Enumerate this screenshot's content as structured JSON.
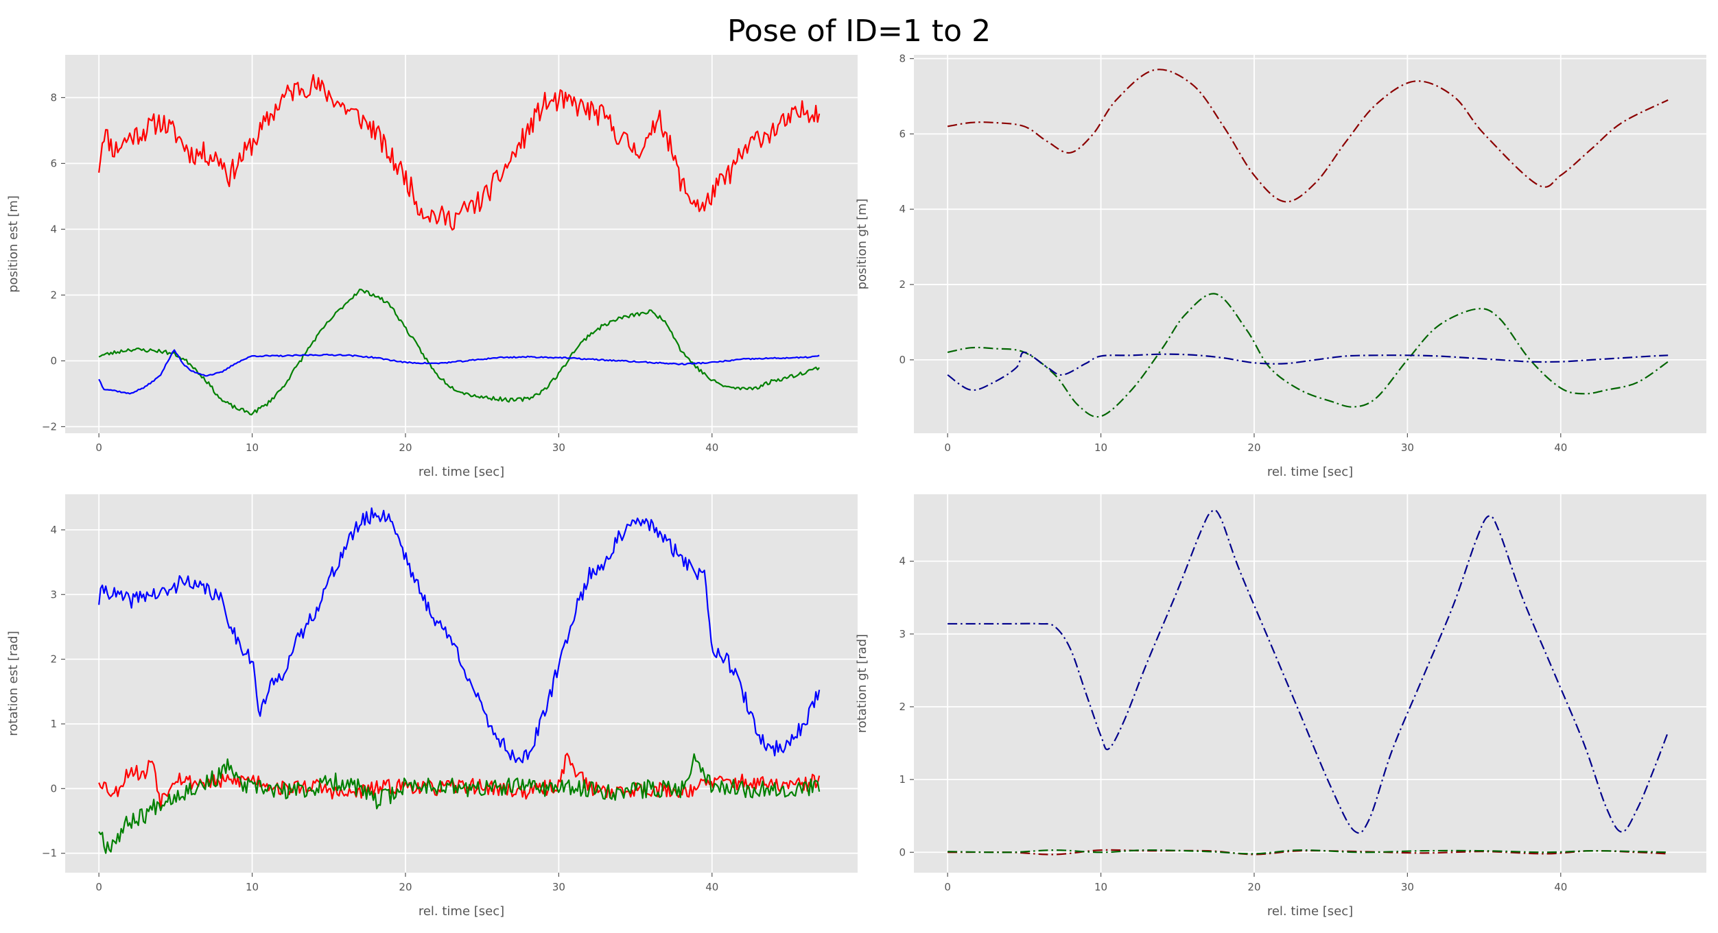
{
  "figure": {
    "title": "Pose of ID=1 to 2"
  },
  "colors": {
    "axes_bg": "#e5e5e5",
    "grid": "#ffffff",
    "est_x": "#ff0000",
    "est_y": "#008000",
    "est_z": "#0000ff",
    "gt_x": "#8b0000",
    "gt_y": "#006400",
    "gt_z": "#00008b"
  },
  "chart_data": [
    {
      "type": "line",
      "xlabel": "rel. time [sec]",
      "ylabel": "position est [m]",
      "xlim": [
        -2.2,
        49.5
      ],
      "ylim": [
        -2.2,
        9.3
      ],
      "xticks": [
        0,
        10,
        20,
        30,
        40
      ],
      "yticks": [
        -2,
        0,
        2,
        4,
        6,
        8
      ],
      "grid": true,
      "series": [
        {
          "color": "#ff0000",
          "style": "solid",
          "noise": 0.35,
          "seed": 11,
          "x": [
            0,
            0.3,
            1,
            2,
            3,
            4,
            5,
            6,
            7,
            8,
            8.5,
            9,
            10,
            11,
            12,
            13,
            14,
            15,
            16,
            17,
            18,
            19,
            20,
            21,
            22,
            23,
            24,
            25,
            26,
            27,
            28,
            29,
            30,
            31,
            32,
            33,
            34,
            35,
            36,
            36.5,
            37,
            38,
            38.5,
            39,
            39.5,
            40,
            41,
            42,
            43,
            44,
            45,
            46,
            47
          ],
          "y": [
            5.9,
            7.0,
            6.4,
            6.8,
            7.0,
            7.3,
            6.9,
            6.3,
            6.3,
            6.1,
            5.6,
            6.0,
            6.6,
            7.3,
            8.0,
            8.3,
            8.4,
            8.1,
            7.7,
            7.4,
            7.0,
            6.2,
            5.6,
            4.6,
            4.4,
            4.3,
            4.6,
            4.9,
            5.5,
            6.2,
            7.0,
            7.8,
            7.9,
            7.8,
            7.6,
            7.4,
            6.8,
            6.4,
            6.7,
            7.6,
            6.9,
            5.4,
            5.0,
            4.8,
            4.6,
            5.1,
            5.6,
            6.3,
            6.8,
            7.0,
            7.3,
            7.6,
            7.6
          ]
        },
        {
          "color": "#008000",
          "style": "solid",
          "noise": 0.06,
          "seed": 23,
          "x": [
            0,
            2,
            4,
            5,
            6,
            7,
            8,
            9,
            10,
            11,
            12,
            13,
            14,
            15,
            16,
            17,
            18,
            19,
            20,
            21,
            22,
            23,
            24,
            25,
            26,
            27,
            28,
            29,
            30,
            31,
            32,
            33,
            34,
            35,
            36,
            37,
            38,
            39,
            40,
            41,
            42,
            43,
            44,
            45,
            46,
            47
          ],
          "y": [
            0.15,
            0.35,
            0.3,
            0.2,
            -0.1,
            -0.6,
            -1.2,
            -1.45,
            -1.6,
            -1.3,
            -0.8,
            -0.1,
            0.6,
            1.2,
            1.7,
            2.15,
            2.0,
            1.7,
            1.0,
            0.3,
            -0.4,
            -0.8,
            -1.0,
            -1.1,
            -1.15,
            -1.2,
            -1.15,
            -0.9,
            -0.4,
            0.3,
            0.8,
            1.1,
            1.3,
            1.4,
            1.5,
            1.2,
            0.3,
            -0.2,
            -0.6,
            -0.8,
            -0.85,
            -0.8,
            -0.6,
            -0.5,
            -0.35,
            -0.2
          ]
        },
        {
          "color": "#0000ff",
          "style": "solid",
          "noise": 0.02,
          "seed": 37,
          "x": [
            0,
            0.3,
            1,
            2,
            3,
            4,
            4.9,
            5.5,
            6,
            7,
            8,
            9,
            10,
            12,
            14,
            16,
            18,
            20,
            22,
            24,
            26,
            28,
            30,
            32,
            34,
            36,
            38,
            40,
            42,
            44,
            46,
            47
          ],
          "y": [
            -0.55,
            -0.85,
            -0.9,
            -1.0,
            -0.8,
            -0.45,
            0.35,
            -0.1,
            -0.3,
            -0.45,
            -0.35,
            -0.05,
            0.15,
            0.15,
            0.18,
            0.18,
            0.1,
            -0.05,
            -0.08,
            0.0,
            0.1,
            0.12,
            0.1,
            0.05,
            0.0,
            -0.05,
            -0.1,
            -0.05,
            0.05,
            0.08,
            0.1,
            0.15
          ]
        }
      ]
    },
    {
      "type": "line",
      "xlabel": "rel. time [sec]",
      "ylabel": "position gt [m]",
      "xlim": [
        -2.2,
        49.5
      ],
      "ylim": [
        -1.95,
        8.1
      ],
      "xticks": [
        0,
        10,
        20,
        30,
        40
      ],
      "yticks": [
        0,
        2,
        4,
        6,
        8
      ],
      "grid": true,
      "series": [
        {
          "color": "#8b0000",
          "style": "dashdot",
          "smooth": true,
          "x": [
            0,
            1.5,
            3,
            5,
            6.5,
            8,
            9.5,
            11,
            13.5,
            16,
            18,
            20,
            22,
            24,
            26,
            28,
            30.5,
            33,
            35,
            38.5,
            40,
            42,
            44,
            47
          ],
          "y": [
            6.2,
            6.3,
            6.3,
            6.2,
            5.8,
            5.5,
            6.0,
            6.9,
            7.7,
            7.3,
            6.2,
            4.9,
            4.2,
            4.7,
            5.8,
            6.8,
            7.4,
            7.0,
            6.0,
            4.65,
            4.9,
            5.6,
            6.3,
            6.9
          ]
        },
        {
          "color": "#006400",
          "style": "dashdot",
          "smooth": true,
          "x": [
            0,
            1.5,
            3,
            5,
            7,
            8.5,
            10,
            12,
            14,
            15.5,
            17.5,
            19.5,
            21,
            23,
            25,
            26.5,
            28,
            30,
            32,
            34.5,
            36,
            38,
            40,
            41.5,
            43,
            45,
            47
          ],
          "y": [
            0.2,
            0.32,
            0.3,
            0.2,
            -0.4,
            -1.2,
            -1.5,
            -0.8,
            0.3,
            1.2,
            1.75,
            0.8,
            -0.2,
            -0.8,
            -1.1,
            -1.25,
            -1.0,
            0.0,
            0.9,
            1.35,
            1.1,
            0.0,
            -0.75,
            -0.9,
            -0.8,
            -0.6,
            -0.05
          ]
        },
        {
          "color": "#00008b",
          "style": "dashdot",
          "smooth": true,
          "x": [
            0,
            1.5,
            3,
            4.5,
            5,
            6.5,
            7.5,
            9,
            10,
            12,
            14,
            16,
            18,
            20,
            22,
            24,
            26,
            28,
            30,
            32,
            34,
            36,
            38,
            40,
            42,
            44,
            46,
            47
          ],
          "y": [
            -0.4,
            -0.8,
            -0.6,
            -0.2,
            0.2,
            -0.2,
            -0.4,
            -0.1,
            0.1,
            0.12,
            0.15,
            0.13,
            0.05,
            -0.08,
            -0.1,
            0.0,
            0.1,
            0.12,
            0.12,
            0.1,
            0.05,
            0.0,
            -0.05,
            -0.05,
            0.0,
            0.05,
            0.1,
            0.12
          ]
        }
      ]
    },
    {
      "type": "line",
      "xlabel": "rel. time [sec]",
      "ylabel": "rotation est [rad]",
      "xlim": [
        -2.2,
        49.5
      ],
      "ylim": [
        -1.3,
        4.55
      ],
      "xticks": [
        0,
        10,
        20,
        30,
        40
      ],
      "yticks": [
        -1,
        0,
        1,
        2,
        3,
        4
      ],
      "grid": true,
      "series": [
        {
          "color": "#0000ff",
          "style": "solid",
          "noise": 0.12,
          "seed": 41,
          "x": [
            0,
            0.3,
            1,
            2,
            3,
            4,
            5,
            5.5,
            6,
            7,
            8,
            8.5,
            9,
            10,
            10.5,
            11,
            12,
            13,
            14,
            15,
            16,
            17,
            18,
            19,
            19.5,
            20,
            21,
            22,
            23,
            24,
            25,
            26,
            27,
            28,
            29,
            30,
            31,
            32,
            33,
            34,
            35,
            36,
            37,
            38,
            39,
            39.5,
            40,
            41,
            42,
            43,
            44,
            45,
            46,
            47
          ],
          "y": [
            2.9,
            3.1,
            3.0,
            2.9,
            3.0,
            3.0,
            3.1,
            3.3,
            3.1,
            3.1,
            2.9,
            2.6,
            2.3,
            2.0,
            1.1,
            1.5,
            1.8,
            2.3,
            2.7,
            3.2,
            3.7,
            4.1,
            4.25,
            4.2,
            3.9,
            3.6,
            3.0,
            2.6,
            2.3,
            1.8,
            1.2,
            0.8,
            0.5,
            0.5,
            1.1,
            1.9,
            2.7,
            3.3,
            3.5,
            3.9,
            4.1,
            4.1,
            3.8,
            3.6,
            3.3,
            3.4,
            2.2,
            2.0,
            1.5,
            0.8,
            0.6,
            0.7,
            1.0,
            1.5
          ]
        },
        {
          "color": "#ff0000",
          "style": "solid",
          "noise": 0.12,
          "seed": 53,
          "x": [
            0,
            1,
            2,
            3,
            3.5,
            4,
            5,
            6,
            8,
            10,
            12,
            14,
            16,
            18,
            20,
            22,
            24,
            26,
            28,
            30,
            30.5,
            32,
            34,
            36,
            38,
            40,
            42,
            44,
            46,
            47
          ],
          "y": [
            0.15,
            -0.1,
            0.3,
            0.2,
            0.5,
            -0.2,
            0.2,
            0.1,
            0.1,
            0.15,
            0.0,
            0.05,
            -0.1,
            0.0,
            0.05,
            0.0,
            0.05,
            0.0,
            -0.05,
            0.05,
            0.5,
            0.0,
            -0.05,
            0.0,
            -0.05,
            0.1,
            0.1,
            0.05,
            0.05,
            0.15
          ]
        },
        {
          "color": "#008000",
          "style": "solid",
          "noise": 0.14,
          "seed": 67,
          "x": [
            0,
            0.5,
            1,
            2,
            3,
            4,
            5,
            6,
            7,
            8,
            8.5,
            9,
            10,
            11,
            12,
            14,
            15,
            16,
            17,
            18,
            19,
            20,
            22,
            24,
            26,
            28,
            30,
            32,
            34,
            36,
            38,
            39,
            40,
            42,
            44,
            46,
            47
          ],
          "y": [
            -0.6,
            -0.9,
            -0.8,
            -0.5,
            -0.4,
            -0.2,
            -0.1,
            0.0,
            0.1,
            0.2,
            0.4,
            0.1,
            0.0,
            0.0,
            -0.05,
            0.0,
            0.1,
            0.1,
            0.0,
            -0.2,
            -0.1,
            0.05,
            0.05,
            0.0,
            0.0,
            0.05,
            0.0,
            0.0,
            -0.05,
            0.0,
            0.0,
            0.5,
            0.05,
            0.0,
            0.0,
            0.0,
            0.05
          ]
        }
      ]
    },
    {
      "type": "line",
      "xlabel": "rel. time [sec]",
      "ylabel": "rotation gt [rad]",
      "xlim": [
        -2.2,
        49.5
      ],
      "ylim": [
        -0.28,
        4.92
      ],
      "xticks": [
        0,
        10,
        20,
        30,
        40
      ],
      "yticks": [
        0,
        1,
        2,
        3,
        4
      ],
      "grid": true,
      "series": [
        {
          "color": "#00008b",
          "style": "dashdot",
          "smooth": true,
          "x": [
            0,
            2,
            4,
            6,
            7,
            8,
            9,
            10,
            10.5,
            11.5,
            13,
            15,
            16.5,
            17.2,
            17.8,
            19,
            21,
            23,
            25,
            26.5,
            27.5,
            29,
            31,
            33,
            34.5,
            35.3,
            36,
            37.5,
            39.5,
            41.5,
            43,
            44,
            45,
            46,
            47
          ],
          "y": [
            3.14,
            3.14,
            3.14,
            3.14,
            3.1,
            2.8,
            2.2,
            1.6,
            1.42,
            1.8,
            2.6,
            3.6,
            4.4,
            4.68,
            4.6,
            3.9,
            2.9,
            1.9,
            0.9,
            0.3,
            0.45,
            1.4,
            2.4,
            3.4,
            4.3,
            4.62,
            4.4,
            3.5,
            2.5,
            1.5,
            0.6,
            0.28,
            0.6,
            1.1,
            1.65
          ]
        },
        {
          "color": "#8b0000",
          "style": "dashdot",
          "smooth": true,
          "x": [
            0,
            4,
            7,
            10,
            13,
            17,
            20,
            23,
            27,
            31,
            35,
            39,
            42,
            45,
            47
          ],
          "y": [
            0.0,
            0.0,
            -0.03,
            0.03,
            0.02,
            0.02,
            -0.03,
            0.02,
            0.01,
            -0.01,
            0.01,
            -0.02,
            0.02,
            0.0,
            -0.02
          ]
        },
        {
          "color": "#006400",
          "style": "dashdot",
          "smooth": true,
          "x": [
            0,
            4,
            7,
            10,
            13,
            17,
            20,
            23,
            27,
            31,
            35,
            39,
            42,
            45,
            47
          ],
          "y": [
            0.01,
            0.0,
            0.03,
            0.0,
            0.03,
            0.01,
            -0.02,
            0.03,
            0.0,
            0.02,
            0.02,
            0.0,
            0.02,
            0.01,
            0.0
          ]
        }
      ]
    }
  ]
}
